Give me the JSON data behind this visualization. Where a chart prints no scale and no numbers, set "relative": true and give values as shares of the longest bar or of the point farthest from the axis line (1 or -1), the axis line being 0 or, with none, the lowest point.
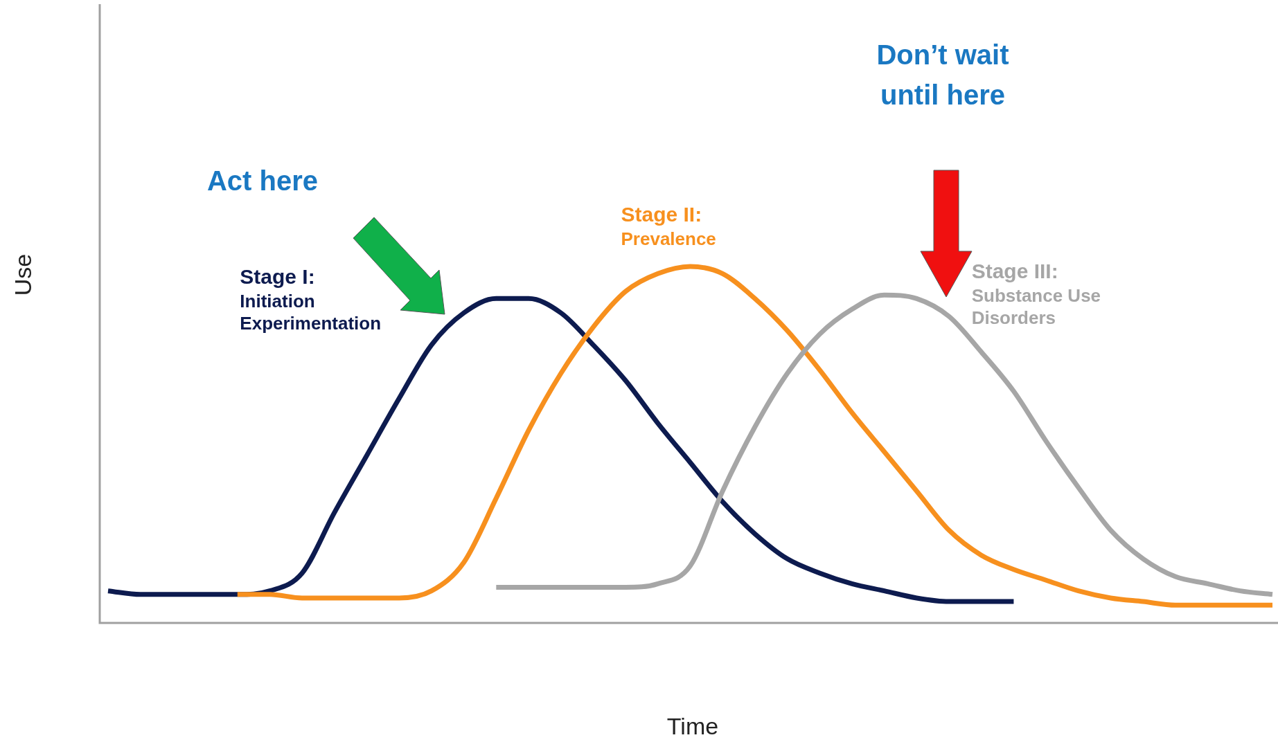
{
  "chart_data": {
    "type": "line",
    "relative": true,
    "xlabel": "Time",
    "ylabel": "Use",
    "legend": false,
    "marker": "none",
    "line_style": "solid",
    "categories": [
      null,
      null,
      null,
      null,
      null,
      null,
      null,
      null,
      null,
      null,
      null,
      null,
      null,
      null,
      null,
      null,
      null,
      null,
      null,
      null,
      null,
      null,
      null,
      null,
      null,
      null,
      null,
      null,
      null,
      null,
      null,
      null,
      null,
      null,
      null,
      null,
      null
    ],
    "series": [
      {
        "name": "Stage I: Initiation Experimentation",
        "color": "#0d1b4f",
        "values": [
          0.09,
          0.08,
          0.08,
          0.08,
          0.08,
          0.09,
          0.14,
          0.31,
          0.47,
          0.63,
          0.78,
          0.87,
          0.91,
          0.91,
          0.87,
          0.78,
          0.68,
          0.56,
          0.45,
          0.34,
          0.25,
          0.18,
          0.14,
          0.11,
          0.09,
          0.07,
          0.06,
          0.06,
          0.06,
          null,
          null,
          null,
          null,
          null,
          null,
          null,
          null
        ]
      },
      {
        "name": "Stage II: Prevalence",
        "color": "#f7901e",
        "values": [
          null,
          null,
          null,
          null,
          0.08,
          0.08,
          0.07,
          0.07,
          0.07,
          0.07,
          0.09,
          0.17,
          0.35,
          0.54,
          0.7,
          0.83,
          0.93,
          0.98,
          1.0,
          0.98,
          0.91,
          0.82,
          0.71,
          0.59,
          0.48,
          0.37,
          0.26,
          0.19,
          0.15,
          0.12,
          0.09,
          0.07,
          0.06,
          0.05,
          0.05,
          0.05,
          0.05
        ]
      },
      {
        "name": "Stage III: Substance Use Disorders",
        "color": "#a6a6a6",
        "values": [
          null,
          null,
          null,
          null,
          null,
          null,
          null,
          null,
          null,
          null,
          null,
          null,
          0.1,
          0.1,
          0.1,
          0.1,
          0.1,
          0.11,
          0.16,
          0.37,
          0.55,
          0.7,
          0.81,
          0.88,
          0.92,
          0.91,
          0.86,
          0.76,
          0.65,
          0.51,
          0.38,
          0.26,
          0.18,
          0.13,
          0.11,
          0.09,
          0.08
        ]
      }
    ],
    "annotations": [
      "Act here",
      "Don’t wait until here"
    ]
  }
}
